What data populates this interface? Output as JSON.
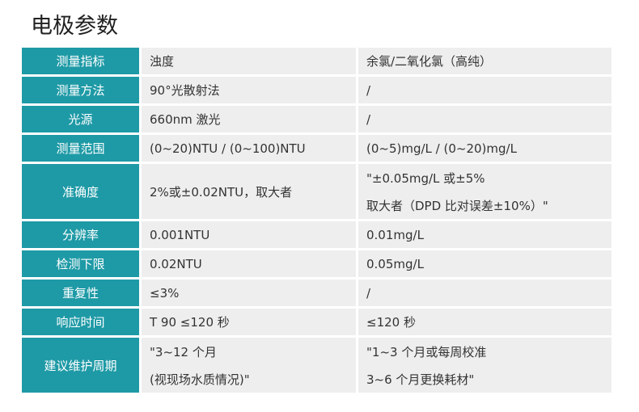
{
  "header": {
    "title": "电极参数"
  },
  "table": {
    "rows": [
      {
        "label": "测量指标",
        "cells": [
          [
            "浊度"
          ],
          [
            "余氯/二氧化氯（高纯）"
          ]
        ]
      },
      {
        "label": "测量方法",
        "cells": [
          [
            "90°光散射法"
          ],
          [
            "/"
          ]
        ]
      },
      {
        "label": "光源",
        "cells": [
          [
            "660nm 激光"
          ],
          [
            "/"
          ]
        ]
      },
      {
        "label": "测量范围",
        "cells": [
          [
            "(0~20)NTU / (0~100)NTU"
          ],
          [
            "(0~5)mg/L / (0~20)mg/L"
          ]
        ]
      },
      {
        "label": "准确度",
        "cells": [
          [
            "2%或±0.02NTU，取大者"
          ],
          [
            "\"±0.05mg/L 或±5%",
            "取大者（DPD 比对误差±10%）\""
          ]
        ]
      },
      {
        "label": "分辨率",
        "cells": [
          [
            "0.001NTU"
          ],
          [
            "0.01mg/L"
          ]
        ]
      },
      {
        "label": "检测下限",
        "cells": [
          [
            "0.02NTU"
          ],
          [
            "0.05mg/L"
          ]
        ]
      },
      {
        "label": "重复性",
        "cells": [
          [
            "≤3%"
          ],
          [
            "/"
          ]
        ]
      },
      {
        "label": "响应时间",
        "cells": [
          [
            "T 90 ≤120 秒"
          ],
          [
            "≤120 秒"
          ]
        ]
      },
      {
        "label": "建议维护周期",
        "cells": [
          [
            "\"3~12 个月",
            "(视现场水质情况)\""
          ],
          [
            "\"1~3 个月或每周校准",
            "3~6 个月更换耗材\""
          ]
        ]
      }
    ]
  }
}
